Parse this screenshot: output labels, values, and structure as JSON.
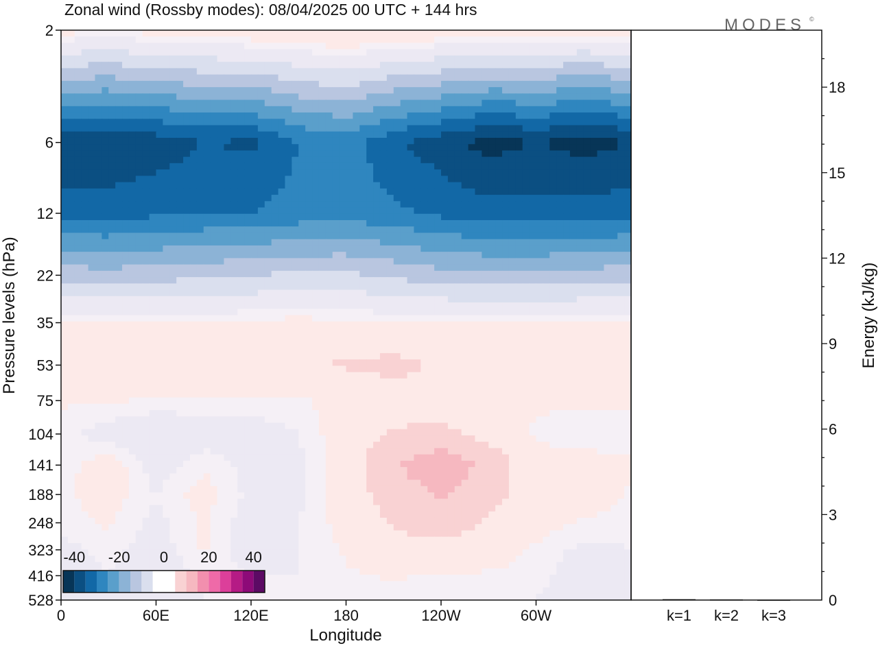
{
  "title": "Zonal wind (Rossby modes):  08/04/2025  00 UTC  + 144 hrs",
  "logo": {
    "text": "MODES",
    "mark": "©"
  },
  "colors": {
    "neg": [
      "#073557",
      "#0b4f82",
      "#1268a6",
      "#2f86bf",
      "#5a9fcb",
      "#8cb3d6",
      "#b9c6e0",
      "#dadfee",
      "#ece9f3"
    ],
    "zero": "#ffffff",
    "pos": [
      "#fdeae8",
      "#f9d2d3",
      "#f6b8c0",
      "#f28fae",
      "#ef6aa8",
      "#dc3f9a",
      "#b51b85",
      "#8d0a78",
      "#5c0a64"
    ],
    "axis": "#111111"
  },
  "chart_data": [
    {
      "type": "heatmap",
      "title": "Zonal wind (Rossby modes):  08/04/2025  00 UTC  + 144 hrs",
      "xlabel": "Longitude",
      "ylabel": "Pressure levels (hPa)",
      "x_ticks": [
        "0",
        "60E",
        "120E",
        "180",
        "120W",
        "60W"
      ],
      "y_ticks": [
        "2",
        "6",
        "12",
        "22",
        "35",
        "53",
        "75",
        "104",
        "141",
        "188",
        "248",
        "323",
        "416",
        "528"
      ],
      "y_scale": "log (top = 2 hPa, bottom = 528 hPa)",
      "colorbar": {
        "ticks": [
          "-40",
          "-20",
          "0",
          "20",
          "40"
        ],
        "range": [
          -45,
          45
        ],
        "step": 5
      },
      "levels": [
        2,
        6,
        12,
        22,
        35,
        53,
        75,
        104,
        141,
        188,
        248,
        323,
        416,
        528
      ],
      "lon": [
        0,
        30,
        60,
        90,
        120,
        150,
        180,
        210,
        240,
        270,
        300,
        330,
        360
      ],
      "values": [
        [
          4,
          3,
          4,
          5,
          6,
          7,
          8,
          7,
          6,
          5,
          4,
          4,
          4
        ],
        [
          -40,
          -40,
          -38,
          -35,
          -36,
          -30,
          -28,
          -34,
          -38,
          -42,
          -40,
          -42,
          -40
        ],
        [
          -32,
          -32,
          -31,
          -30,
          -30,
          -28,
          -27,
          -29,
          -31,
          -33,
          -33,
          -33,
          -32
        ],
        [
          -12,
          -13,
          -12,
          -11,
          -10,
          -9,
          -9,
          -11,
          -13,
          -14,
          -14,
          -13,
          -12
        ],
        [
          3,
          3,
          3,
          3,
          3,
          4,
          3,
          3,
          3,
          3,
          3,
          3,
          3
        ],
        [
          6,
          5,
          6,
          7,
          6,
          7,
          8,
          9,
          7,
          7,
          6,
          7,
          7
        ],
        [
          3,
          3,
          2,
          2,
          2,
          2,
          4,
          5,
          5,
          4,
          3,
          3,
          3
        ],
        [
          1,
          -2,
          -4,
          -2,
          -2,
          0,
          5,
          8,
          9,
          6,
          2,
          1,
          1
        ],
        [
          1,
          5,
          -2,
          2,
          -1,
          -1,
          5,
          12,
          16,
          11,
          4,
          4,
          3
        ],
        [
          2,
          4,
          0,
          4,
          -1,
          -1,
          5,
          10,
          13,
          9,
          5,
          5,
          2
        ],
        [
          1,
          3,
          -1,
          3,
          -2,
          0,
          4,
          8,
          10,
          7,
          4,
          2,
          1
        ],
        [
          -1,
          1,
          -2,
          3,
          -2,
          0,
          3,
          6,
          6,
          5,
          2,
          -1,
          0
        ],
        [
          -2,
          0,
          -3,
          1,
          0,
          0,
          2,
          3,
          2,
          2,
          1,
          -2,
          -1
        ],
        [
          -2,
          0,
          -2,
          0,
          0,
          1,
          0,
          0,
          0,
          1,
          0,
          -3,
          -2
        ]
      ]
    },
    {
      "type": "bar",
      "categories": [
        "k=1",
        "k=2",
        "k=3"
      ],
      "values": [
        0.03,
        0.02,
        0.01
      ],
      "ylabel": "Energy (kJ/kg)",
      "y_ticks": [
        "0",
        "3",
        "6",
        "9",
        "12",
        "15",
        "18"
      ],
      "ylim": [
        0,
        20
      ]
    }
  ]
}
